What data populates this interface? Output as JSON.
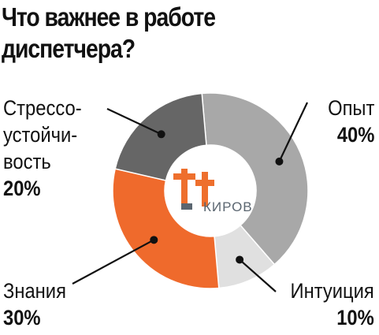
{
  "title_lines": [
    "Что важнее в работе",
    "диспетчера?"
  ],
  "logo": {
    "text": "КИРОВ",
    "mark": "t+t",
    "colors": {
      "orange": "#ee6f2d",
      "gray": "#5b6670"
    }
  },
  "chart_data": {
    "type": "pie",
    "donut": true,
    "title": "Что важнее в работе диспетчера?",
    "slices": [
      {
        "label": "Опыт",
        "value": 40,
        "value_label": "40%",
        "color": "#a8a8a8"
      },
      {
        "label": "Интуиция",
        "value": 10,
        "value_label": "10%",
        "color": "#e0e0e0"
      },
      {
        "label": "Знания",
        "value": 30,
        "value_label": "30%",
        "color": "#ef6a2c"
      },
      {
        "label": "Стрессо-устойчи-вость",
        "label_lines": [
          "Стрессо-",
          "устойчи-",
          "вость"
        ],
        "value": 20,
        "value_label": "20%",
        "color": "#666666"
      }
    ]
  }
}
